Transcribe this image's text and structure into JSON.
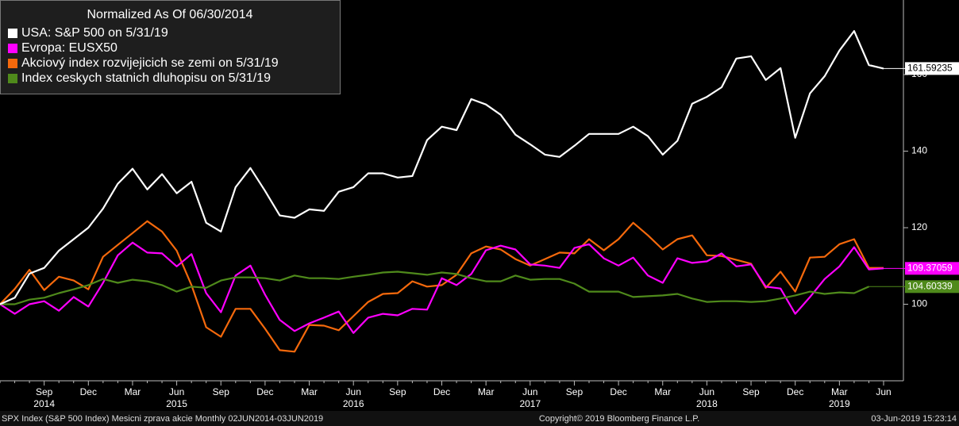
{
  "chart_data": {
    "type": "line",
    "legend_title": "Normalized As Of 06/30/2014",
    "footer_left": "SPX Index (S&P 500 Index) Mesicni zprava akcie  Monthly 02JUN2014-03JUN2019",
    "footer_center": "Copyright© 2019 Bloomberg Finance L.P.",
    "footer_right": "03-Jun-2019 15:23:14",
    "categories": [
      null,
      null,
      null,
      "Sep",
      null,
      null,
      "Dec",
      null,
      null,
      "Mar",
      null,
      null,
      "Jun",
      null,
      null,
      "Sep",
      null,
      null,
      "Dec",
      null,
      null,
      "Mar",
      null,
      null,
      "Jun",
      null,
      null,
      "Sep",
      null,
      null,
      "Dec",
      null,
      null,
      "Mar",
      null,
      null,
      "Jun",
      null,
      null,
      "Sep",
      null,
      null,
      "Dec",
      null,
      null,
      "Mar",
      null,
      null,
      "Jun",
      null,
      null,
      "Sep",
      null,
      null,
      "Dec",
      null,
      null,
      "Mar",
      null,
      null,
      "Jun"
    ],
    "years": [
      null,
      null,
      null,
      "2014",
      null,
      null,
      null,
      null,
      null,
      null,
      null,
      null,
      "2015",
      null,
      null,
      null,
      null,
      null,
      null,
      null,
      null,
      null,
      null,
      null,
      "2016",
      null,
      null,
      null,
      null,
      null,
      null,
      null,
      null,
      null,
      null,
      null,
      "2017",
      null,
      null,
      null,
      null,
      null,
      null,
      null,
      null,
      null,
      null,
      null,
      "2018",
      null,
      null,
      null,
      null,
      null,
      null,
      null,
      null,
      "2019",
      null,
      null,
      null
    ],
    "ylim": [
      80,
      179.5
    ],
    "yticks": [
      100,
      120,
      140,
      160
    ],
    "grid": false,
    "series": [
      {
        "name": "USA: S&P 500 on 5/31/19",
        "color": "#ffffff",
        "label_text": "#000000",
        "values": [
          100,
          101.7,
          108,
          109.5,
          114,
          117,
          120,
          125,
          131.5,
          135.4,
          130,
          134,
          129,
          132,
          121.3,
          119,
          130.6,
          135.6,
          129.6,
          123.2,
          122.6,
          124.8,
          124.4,
          129.4,
          130.6,
          134.2,
          134.2,
          133.1,
          133.5,
          142.9,
          146.4,
          145.5,
          153.6,
          152.2,
          149.5,
          144.3,
          141.8,
          139.1,
          138.5,
          141.4,
          144.5,
          144.5,
          144.5,
          146.4,
          143.9,
          139.1,
          142.7,
          152.4,
          154.2,
          156.7,
          164.2,
          164.8,
          158.6,
          161.7,
          143.5,
          155.1,
          159.6,
          166.3,
          171.4,
          162.5,
          161.59235
        ],
        "value_labels": {
          "60": "161.59235"
        }
      },
      {
        "name": "Evropa: EUSX50",
        "color": "#ff00ff",
        "label_text": "#ffffff",
        "values": [
          100,
          97.5,
          100,
          100.8,
          98.3,
          101.9,
          99.4,
          105.6,
          112.8,
          116.1,
          113.5,
          113.3,
          109.9,
          113.1,
          102.9,
          97.9,
          107.5,
          110.1,
          102.5,
          95.9,
          93,
          95,
          96.5,
          98.1,
          92.5,
          96.5,
          97.5,
          97.1,
          98.8,
          98.6,
          106.8,
          105,
          107.9,
          114.1,
          115.3,
          114.3,
          110.4,
          110.1,
          109.5,
          114.7,
          115.7,
          112,
          110.1,
          112.2,
          107.5,
          105.6,
          112,
          110.8,
          111.2,
          113.3,
          109.9,
          110.4,
          104.6,
          104.1,
          97.5,
          101.9,
          106.6,
          109.9,
          114.9,
          109.1,
          109.37059
        ],
        "value_labels": {
          "60": "109.37059"
        }
      },
      {
        "name": "Akciový index rozvijejicich se zemi on 5/31/19",
        "color": "#f5690c",
        "values": [
          100,
          104,
          109,
          103.7,
          107.2,
          106.2,
          103.9,
          112.4,
          115.5,
          118.6,
          121.7,
          119,
          114,
          105,
          94,
          91.5,
          98.8,
          98.8,
          93.6,
          88,
          87.6,
          94.6,
          94.4,
          93.2,
          96.9,
          100.6,
          102.7,
          102.9,
          106,
          104.6,
          105,
          107.7,
          113.3,
          115.1,
          114.3,
          111.8,
          110.1,
          111.8,
          113.5,
          113.3,
          117,
          114.1,
          117,
          121.3,
          118,
          114.3,
          117,
          118,
          112.8,
          112.6,
          111.6,
          110.6,
          104.3,
          108.5,
          103.3,
          112.2,
          112.4,
          115.7,
          117,
          109.5,
          109.5
        ]
      },
      {
        "name": "Index ceskych statnich dluhopisu on 5/31/19",
        "color": "#4f8a1b",
        "label_text": "#ffffff",
        "values": [
          100,
          100,
          101.2,
          101.7,
          102.9,
          103.9,
          105,
          106.6,
          105.6,
          106.4,
          106,
          105,
          103.3,
          104.6,
          104.3,
          106.2,
          107,
          107,
          106.8,
          106.2,
          107.5,
          106.8,
          106.8,
          106.6,
          107.2,
          107.7,
          108.3,
          108.5,
          108.1,
          107.7,
          108.3,
          107.9,
          106.8,
          106,
          106,
          107.5,
          106.4,
          106.6,
          106.6,
          105.4,
          103.3,
          103.3,
          103.3,
          101.9,
          102.1,
          102.3,
          102.7,
          101.5,
          100.6,
          100.8,
          100.8,
          100.6,
          100.8,
          101.5,
          102.3,
          103.3,
          102.7,
          103.1,
          102.9,
          104.60339,
          null
        ],
        "value_labels": {
          "59": "104.60339"
        }
      }
    ]
  }
}
